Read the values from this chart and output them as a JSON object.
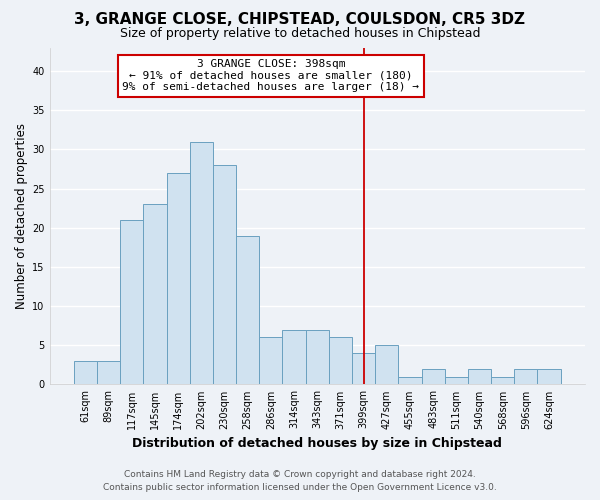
{
  "title": "3, GRANGE CLOSE, CHIPSTEAD, COULSDON, CR5 3DZ",
  "subtitle": "Size of property relative to detached houses in Chipstead",
  "xlabel": "Distribution of detached houses by size in Chipstead",
  "ylabel": "Number of detached properties",
  "bin_labels": [
    "61sqm",
    "89sqm",
    "117sqm",
    "145sqm",
    "174sqm",
    "202sqm",
    "230sqm",
    "258sqm",
    "286sqm",
    "314sqm",
    "343sqm",
    "371sqm",
    "399sqm",
    "427sqm",
    "455sqm",
    "483sqm",
    "511sqm",
    "540sqm",
    "568sqm",
    "596sqm",
    "624sqm"
  ],
  "bin_values": [
    3,
    3,
    21,
    23,
    27,
    31,
    28,
    19,
    6,
    7,
    7,
    6,
    4,
    5,
    1,
    2,
    1,
    2,
    1,
    2,
    2
  ],
  "bar_color": "#d0e2f0",
  "bar_edge_color": "#6aa0c0",
  "vline_x_index": 12,
  "vline_color": "#cc0000",
  "annotation_text": "3 GRANGE CLOSE: 398sqm\n← 91% of detached houses are smaller (180)\n9% of semi-detached houses are larger (18) →",
  "annotation_box_color": "#ffffff",
  "annotation_box_edge_color": "#cc0000",
  "ylim": [
    0,
    43
  ],
  "yticks": [
    0,
    5,
    10,
    15,
    20,
    25,
    30,
    35,
    40
  ],
  "footer_line1": "Contains HM Land Registry data © Crown copyright and database right 2024.",
  "footer_line2": "Contains public sector information licensed under the Open Government Licence v3.0.",
  "bg_color": "#eef2f7",
  "grid_color": "#ffffff",
  "title_fontsize": 11,
  "subtitle_fontsize": 9,
  "axis_label_fontsize": 8.5,
  "tick_fontsize": 7,
  "footer_fontsize": 6.5,
  "annotation_fontsize": 8
}
